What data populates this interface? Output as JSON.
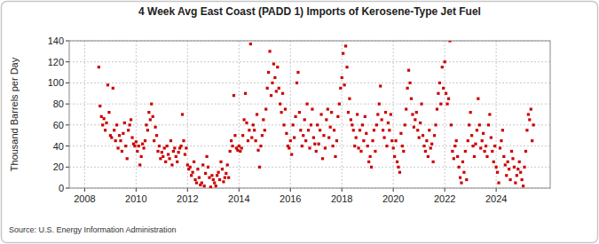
{
  "chart_data": {
    "type": "scatter",
    "title": "4 Week Avg East Coast (PADD 1) Imports of Kerosene-Type Jet Fuel",
    "y_label": "Thousand Barrels per Day",
    "source": "Source: U.S. Energy Information Administration",
    "color": "#cc0000",
    "marker": "square",
    "grid": true,
    "xlim": [
      2007.4,
      2026.1
    ],
    "xticks": [
      2008,
      2010,
      2012,
      2014,
      2016,
      2018,
      2020,
      2022,
      2024
    ],
    "ylim": [
      0,
      140
    ],
    "yticks": [
      0,
      20,
      40,
      60,
      80,
      100,
      120,
      140
    ],
    "x": [
      2008.55,
      2008.6,
      2008.65,
      2008.7,
      2008.75,
      2008.8,
      2008.85,
      2008.9,
      2008.95,
      2009,
      2009.05,
      2009.1,
      2009.15,
      2009.2,
      2009.25,
      2009.3,
      2009.35,
      2009.4,
      2009.45,
      2009.5,
      2009.55,
      2009.6,
      2009.65,
      2009.7,
      2009.75,
      2009.8,
      2009.85,
      2009.9,
      2009.95,
      2010,
      2010.05,
      2010.1,
      2010.15,
      2010.2,
      2010.25,
      2010.3,
      2010.35,
      2010.4,
      2010.45,
      2010.5,
      2010.55,
      2010.6,
      2010.65,
      2010.7,
      2010.75,
      2010.8,
      2010.85,
      2010.9,
      2010.95,
      2011,
      2011.05,
      2011.1,
      2011.15,
      2011.2,
      2011.25,
      2011.3,
      2011.35,
      2011.4,
      2011.45,
      2011.5,
      2011.55,
      2011.6,
      2011.65,
      2011.7,
      2011.75,
      2011.8,
      2011.85,
      2011.9,
      2011.95,
      2012,
      2012.05,
      2012.1,
      2012.15,
      2012.2,
      2012.25,
      2012.3,
      2012.35,
      2012.4,
      2012.45,
      2012.5,
      2012.55,
      2012.6,
      2012.65,
      2012.7,
      2012.75,
      2012.8,
      2012.85,
      2012.9,
      2012.95,
      2013,
      2013.05,
      2013.1,
      2013.15,
      2013.2,
      2013.25,
      2013.3,
      2013.35,
      2013.4,
      2013.45,
      2013.5,
      2013.55,
      2013.6,
      2013.65,
      2013.7,
      2013.75,
      2013.8,
      2013.85,
      2013.9,
      2013.95,
      2014,
      2014.05,
      2014.1,
      2014.15,
      2014.2,
      2014.25,
      2014.3,
      2014.35,
      2014.4,
      2014.45,
      2014.5,
      2014.55,
      2014.6,
      2014.65,
      2014.7,
      2014.75,
      2014.8,
      2014.85,
      2014.9,
      2014.95,
      2015,
      2015.05,
      2015.1,
      2015.15,
      2015.2,
      2015.25,
      2015.3,
      2015.35,
      2015.4,
      2015.45,
      2015.5,
      2015.55,
      2015.6,
      2015.65,
      2015.7,
      2015.75,
      2015.8,
      2015.85,
      2015.9,
      2015.95,
      2016,
      2016.05,
      2016.1,
      2016.15,
      2016.2,
      2016.25,
      2016.3,
      2016.35,
      2016.4,
      2016.45,
      2016.5,
      2016.55,
      2016.6,
      2016.65,
      2016.7,
      2016.75,
      2016.8,
      2016.85,
      2016.9,
      2016.95,
      2017,
      2017.05,
      2017.1,
      2017.15,
      2017.2,
      2017.25,
      2017.3,
      2017.35,
      2017.4,
      2017.45,
      2017.5,
      2017.55,
      2017.6,
      2017.65,
      2017.7,
      2017.75,
      2017.8,
      2017.85,
      2017.9,
      2017.95,
      2018,
      2018.05,
      2018.1,
      2018.15,
      2018.2,
      2018.25,
      2018.3,
      2018.35,
      2018.4,
      2018.45,
      2018.5,
      2018.55,
      2018.6,
      2018.65,
      2018.7,
      2018.75,
      2018.8,
      2018.85,
      2018.9,
      2018.95,
      2019,
      2019.05,
      2019.1,
      2019.15,
      2019.2,
      2019.25,
      2019.3,
      2019.35,
      2019.4,
      2019.45,
      2019.5,
      2019.55,
      2019.6,
      2019.65,
      2019.7,
      2019.75,
      2019.8,
      2019.85,
      2019.9,
      2019.95,
      2020,
      2020.05,
      2020.1,
      2020.15,
      2020.2,
      2020.25,
      2020.3,
      2020.35,
      2020.4,
      2020.45,
      2020.5,
      2020.55,
      2020.6,
      2020.65,
      2020.7,
      2020.75,
      2020.8,
      2020.85,
      2020.9,
      2020.95,
      2021,
      2021.05,
      2021.1,
      2021.15,
      2021.2,
      2021.25,
      2021.3,
      2021.35,
      2021.4,
      2021.45,
      2021.5,
      2021.55,
      2021.6,
      2021.65,
      2021.7,
      2021.75,
      2021.8,
      2021.85,
      2021.9,
      2021.95,
      2022,
      2022.05,
      2022.1,
      2022.15,
      2022.2,
      2022.25,
      2022.3,
      2022.35,
      2022.4,
      2022.45,
      2022.5,
      2022.55,
      2022.6,
      2022.65,
      2022.7,
      2022.75,
      2022.8,
      2022.85,
      2022.9,
      2022.95,
      2023,
      2023.05,
      2023.1,
      2023.15,
      2023.2,
      2023.25,
      2023.3,
      2023.35,
      2023.4,
      2023.45,
      2023.5,
      2023.55,
      2023.6,
      2023.65,
      2023.7,
      2023.75,
      2023.8,
      2023.85,
      2023.9,
      2023.95,
      2024,
      2024.05,
      2024.1,
      2024.15,
      2024.2,
      2024.25,
      2024.3,
      2024.35,
      2024.4,
      2024.45,
      2024.5,
      2024.55,
      2024.6,
      2024.65,
      2024.7,
      2024.75,
      2024.8,
      2024.85,
      2024.9,
      2024.95,
      2025,
      2025.05,
      2025.1,
      2025.15,
      2025.2,
      2025.25,
      2025.3,
      2025.35,
      2025.4,
      2025.45
    ],
    "values": [
      115,
      78,
      68,
      60,
      66,
      55,
      62,
      98,
      72,
      50,
      48,
      95,
      55,
      45,
      60,
      38,
      50,
      45,
      35,
      52,
      62,
      40,
      28,
      55,
      60,
      65,
      48,
      42,
      40,
      44,
      35,
      40,
      22,
      30,
      42,
      38,
      45,
      60,
      55,
      72,
      65,
      80,
      68,
      45,
      58,
      50,
      35,
      40,
      28,
      34,
      30,
      38,
      25,
      40,
      32,
      28,
      45,
      22,
      35,
      38,
      30,
      25,
      34,
      38,
      40,
      70,
      45,
      32,
      38,
      22,
      18,
      20,
      12,
      15,
      25,
      8,
      5,
      18,
      10,
      3,
      5,
      22,
      2,
      14,
      30,
      20,
      10,
      1,
      12,
      8,
      5,
      2,
      12,
      15,
      8,
      25,
      18,
      6,
      10,
      14,
      22,
      10,
      35,
      45,
      40,
      88,
      50,
      38,
      36,
      40,
      35,
      38,
      50,
      65,
      90,
      62,
      45,
      55,
      137,
      48,
      60,
      55,
      45,
      70,
      36,
      20,
      40,
      50,
      65,
      55,
      75,
      95,
      110,
      130,
      88,
      100,
      118,
      105,
      92,
      115,
      95,
      80,
      72,
      90,
      60,
      75,
      52,
      40,
      38,
      45,
      32,
      60,
      48,
      68,
      100,
      110,
      72,
      55,
      40,
      50,
      65,
      45,
      80,
      55,
      38,
      60,
      75,
      48,
      42,
      35,
      60,
      42,
      55,
      70,
      28,
      50,
      38,
      65,
      75,
      48,
      58,
      72,
      40,
      55,
      30,
      45,
      68,
      80,
      95,
      105,
      128,
      98,
      135,
      115,
      72,
      85,
      65,
      60,
      55,
      40,
      48,
      70,
      38,
      55,
      35,
      60,
      45,
      68,
      52,
      40,
      25,
      30,
      20,
      45,
      55,
      35,
      60,
      70,
      80,
      97,
      65,
      55,
      48,
      72,
      40,
      62,
      55,
      70,
      45,
      38,
      30,
      45,
      25,
      20,
      15,
      52,
      40,
      35,
      60,
      75,
      95,
      112,
      100,
      85,
      70,
      58,
      65,
      72,
      55,
      48,
      62,
      80,
      50,
      40,
      35,
      45,
      30,
      55,
      38,
      42,
      25,
      50,
      60,
      75,
      90,
      100,
      80,
      115,
      95,
      120,
      90,
      80,
      85,
      140,
      60,
      35,
      28,
      40,
      45,
      30,
      20,
      10,
      5,
      25,
      15,
      35,
      8,
      45,
      60,
      72,
      50,
      40,
      30,
      42,
      55,
      85,
      60,
      38,
      45,
      52,
      35,
      40,
      30,
      60,
      70,
      48,
      35,
      25,
      40,
      20,
      15,
      5,
      38,
      45,
      55,
      30,
      22,
      12,
      25,
      18,
      8,
      35,
      28,
      20,
      5,
      12,
      18,
      25,
      15,
      8,
      2,
      20,
      35,
      55,
      70,
      65,
      75,
      45,
      60
    ]
  }
}
